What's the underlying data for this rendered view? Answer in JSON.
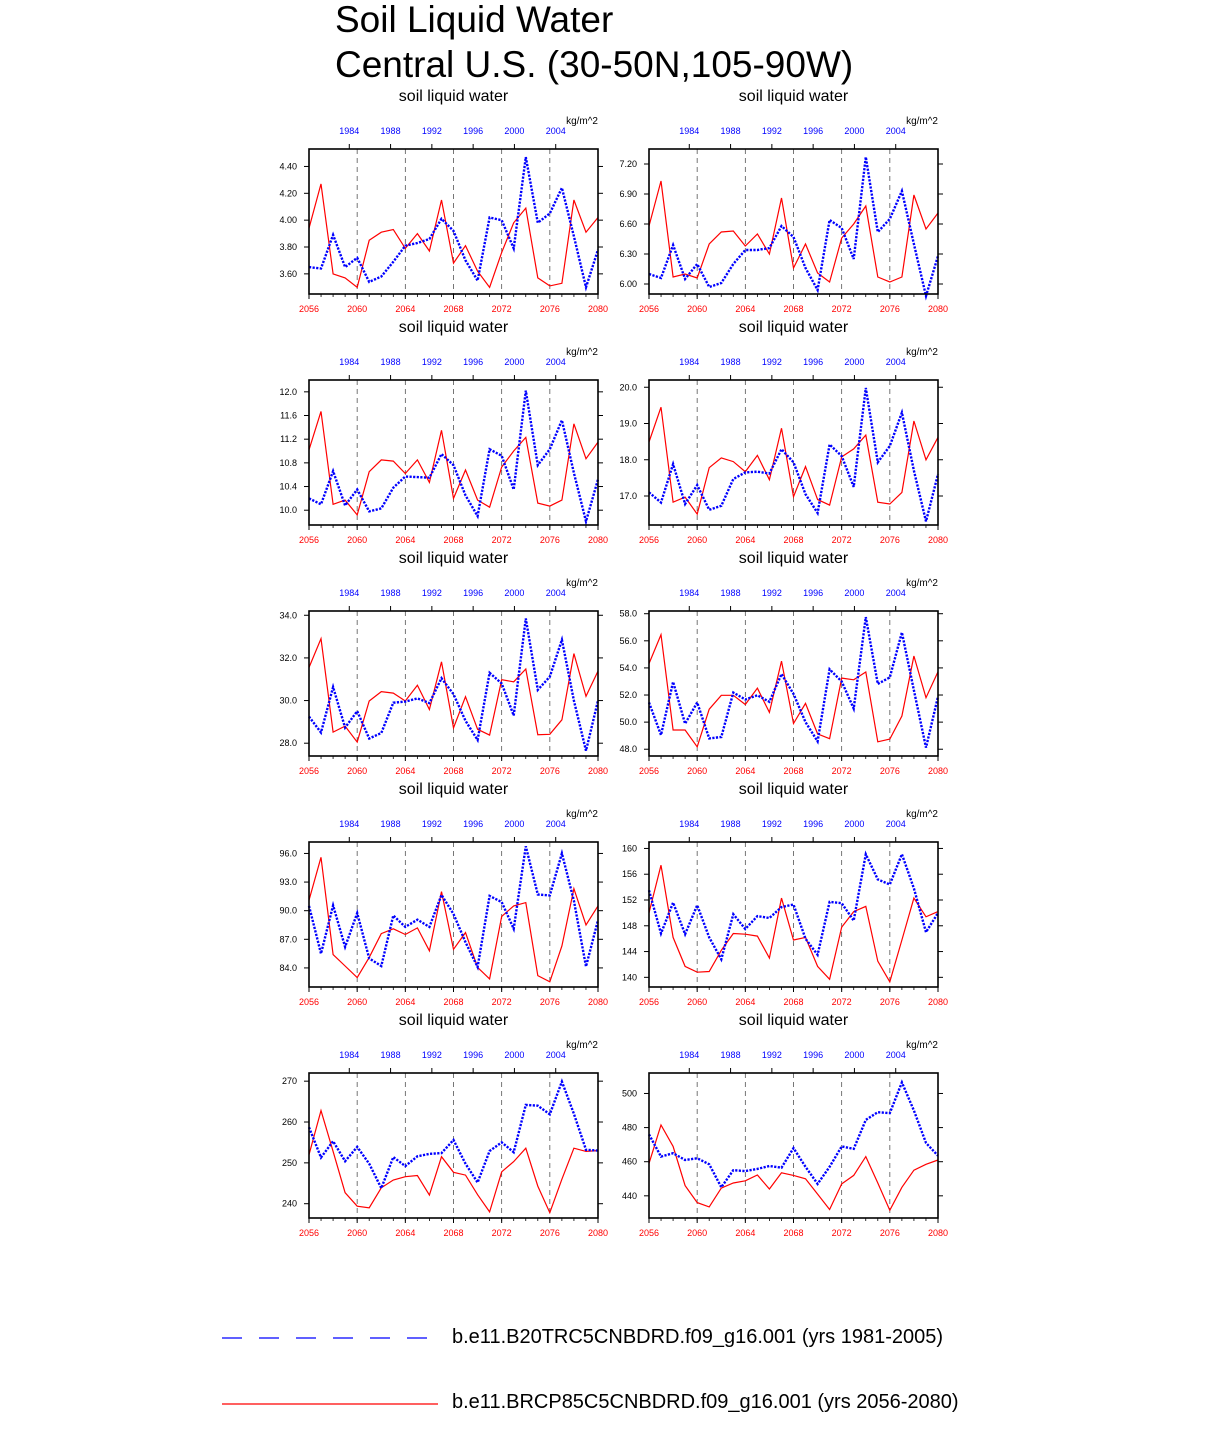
{
  "figure": {
    "title_line1": "Soil Liquid Water",
    "title_line2": "Central U.S. (30-50N,105-90W)"
  },
  "legend": {
    "items": [
      {
        "label": "b.e11.B20TRC5CNBDRD.f09_g16.001 (yrs 1981-2005)",
        "color": "#0000ff",
        "style": "dashed"
      },
      {
        "label": "b.e11.BRCP85C5CNBDRD.f09_g16.001 (yrs 2056-2080)",
        "color": "#ff0000",
        "style": "solid"
      }
    ]
  },
  "chart_data": [
    {
      "type": "line",
      "title": "soil liquid water",
      "units": "kg/m^2",
      "ylim": [
        3.45,
        4.53
      ],
      "yticks": [
        3.6,
        3.8,
        4.0,
        4.2,
        4.4
      ],
      "ytick_labels": [
        "3.60",
        "3.80",
        "4.00",
        "4.20",
        "4.40"
      ],
      "x_bottom_ticks": [
        "2056",
        "2060",
        "2064",
        "2068",
        "2072",
        "2076",
        "2080"
      ],
      "x_top_ticks": [
        "1984",
        "1988",
        "1992",
        "1996",
        "2000",
        "2004"
      ],
      "series": [
        {
          "name": "b.e11.B20TRC5CNBDRD.f09_g16.001 (yrs 1981-2005)",
          "color": "#0000ff",
          "values": [
            3.65,
            3.64,
            3.89,
            3.65,
            3.72,
            3.54,
            3.58,
            3.69,
            3.81,
            3.83,
            3.86,
            4.01,
            3.92,
            3.7,
            3.55,
            4.02,
            4.0,
            3.79,
            4.47,
            3.98,
            4.05,
            4.24,
            3.88,
            3.5,
            3.78
          ]
        },
        {
          "name": "b.e11.BRCP85C5CNBDRD.f09_g16.001 (yrs 2056-2080)",
          "color": "#ff0000",
          "values": [
            3.94,
            4.27,
            3.6,
            3.57,
            3.5,
            3.85,
            3.91,
            3.93,
            3.79,
            3.9,
            3.77,
            4.15,
            3.68,
            3.81,
            3.62,
            3.5,
            3.76,
            3.98,
            4.09,
            3.57,
            3.51,
            3.53,
            4.15,
            3.91,
            4.02
          ]
        }
      ]
    },
    {
      "type": "line",
      "title": "soil liquid water",
      "units": "kg/m^2",
      "ylim": [
        5.9,
        7.35
      ],
      "yticks": [
        6.0,
        6.3,
        6.6,
        6.9,
        7.2
      ],
      "ytick_labels": [
        "6.00",
        "6.30",
        "6.60",
        "6.90",
        "7.20"
      ],
      "x_bottom_ticks": [
        "2056",
        "2060",
        "2064",
        "2068",
        "2072",
        "2076",
        "2080"
      ],
      "x_top_ticks": [
        "1984",
        "1988",
        "1992",
        "1996",
        "2000",
        "2004"
      ],
      "series": [
        {
          "name": "b.e11.B20TRC5CNBDRD.f09_g16.001 (yrs 1981-2005)",
          "color": "#0000ff",
          "values": [
            6.1,
            6.06,
            6.39,
            6.05,
            6.2,
            5.97,
            6.01,
            6.2,
            6.34,
            6.34,
            6.36,
            6.58,
            6.47,
            6.16,
            5.94,
            6.64,
            6.56,
            6.25,
            7.27,
            6.52,
            6.65,
            6.93,
            6.4,
            5.88,
            6.28
          ]
        },
        {
          "name": "b.e11.BRCP85C5CNBDRD.f09_g16.001 (yrs 2056-2080)",
          "color": "#ff0000",
          "values": [
            6.58,
            7.03,
            6.07,
            6.1,
            6.06,
            6.4,
            6.52,
            6.53,
            6.38,
            6.5,
            6.3,
            6.86,
            6.16,
            6.4,
            6.11,
            6.02,
            6.46,
            6.6,
            6.78,
            6.07,
            6.02,
            6.07,
            6.89,
            6.55,
            6.71
          ]
        }
      ]
    },
    {
      "type": "line",
      "title": "soil liquid water",
      "units": "kg/m^2",
      "ylim": [
        9.75,
        12.2
      ],
      "yticks": [
        10.0,
        10.4,
        10.8,
        11.2,
        11.6,
        12.0
      ],
      "ytick_labels": [
        "10.0",
        "10.4",
        "10.8",
        "11.2",
        "11.6",
        "12.0"
      ],
      "x_bottom_ticks": [
        "2056",
        "2060",
        "2064",
        "2068",
        "2072",
        "2076",
        "2080"
      ],
      "x_top_ticks": [
        "1984",
        "1988",
        "1992",
        "1996",
        "2000",
        "2004"
      ],
      "series": [
        {
          "name": "b.e11.B20TRC5CNBDRD.f09_g16.001 (yrs 1981-2005)",
          "color": "#0000ff",
          "values": [
            10.2,
            10.1,
            10.66,
            10.08,
            10.35,
            9.98,
            10.03,
            10.38,
            10.57,
            10.56,
            10.55,
            10.95,
            10.76,
            10.25,
            9.9,
            11.03,
            10.92,
            10.35,
            12.02,
            10.76,
            11.03,
            11.52,
            10.63,
            9.81,
            10.52
          ]
        },
        {
          "name": "b.e11.BRCP85C5CNBDRD.f09_g16.001 (yrs 2056-2080)",
          "color": "#ff0000",
          "values": [
            11.02,
            11.67,
            10.1,
            10.17,
            9.92,
            10.65,
            10.85,
            10.83,
            10.62,
            10.85,
            10.47,
            11.35,
            10.2,
            10.68,
            10.17,
            10.05,
            10.73,
            11.0,
            11.23,
            10.12,
            10.07,
            10.17,
            11.46,
            10.87,
            11.15
          ]
        }
      ]
    },
    {
      "type": "line",
      "title": "soil liquid water",
      "units": "kg/m^2",
      "ylim": [
        16.2,
        20.2
      ],
      "yticks": [
        17.0,
        18.0,
        19.0,
        20.0
      ],
      "ytick_labels": [
        "17.0",
        "18.0",
        "19.0",
        "20.0"
      ],
      "x_bottom_ticks": [
        "2056",
        "2060",
        "2064",
        "2068",
        "2072",
        "2076",
        "2080"
      ],
      "x_top_ticks": [
        "1984",
        "1988",
        "1992",
        "1996",
        "2000",
        "2004"
      ],
      "series": [
        {
          "name": "b.e11.B20TRC5CNBDRD.f09_g16.001 (yrs 1981-2005)",
          "color": "#0000ff",
          "values": [
            17.1,
            16.82,
            17.88,
            16.78,
            17.3,
            16.62,
            16.73,
            17.47,
            17.65,
            17.67,
            17.62,
            18.29,
            17.93,
            17.05,
            16.53,
            18.42,
            18.1,
            17.25,
            19.98,
            17.93,
            18.38,
            19.3,
            17.7,
            16.3,
            17.6
          ]
        },
        {
          "name": "b.e11.BRCP85C5CNBDRD.f09_g16.001 (yrs 2056-2080)",
          "color": "#ff0000",
          "values": [
            18.49,
            19.45,
            16.83,
            16.97,
            16.5,
            17.78,
            18.05,
            17.95,
            17.67,
            18.12,
            17.45,
            18.87,
            16.98,
            17.81,
            16.9,
            16.75,
            18.08,
            18.3,
            18.68,
            16.83,
            16.78,
            17.1,
            19.07,
            18.0,
            18.62
          ]
        }
      ]
    },
    {
      "type": "line",
      "title": "soil liquid water",
      "units": "kg/m^2",
      "ylim": [
        27.4,
        34.2
      ],
      "yticks": [
        28.0,
        30.0,
        32.0,
        34.0
      ],
      "ytick_labels": [
        "28.0",
        "30.0",
        "32.0",
        "34.0"
      ],
      "x_bottom_ticks": [
        "2056",
        "2060",
        "2064",
        "2068",
        "2072",
        "2076",
        "2080"
      ],
      "x_top_ticks": [
        "1984",
        "1988",
        "1992",
        "1996",
        "2000",
        "2004"
      ],
      "series": [
        {
          "name": "b.e11.B20TRC5CNBDRD.f09_g16.001 (yrs 1981-2005)",
          "color": "#0000ff",
          "values": [
            29.25,
            28.5,
            30.63,
            28.73,
            29.5,
            28.22,
            28.48,
            29.9,
            29.95,
            30.1,
            29.88,
            31.05,
            30.3,
            29.05,
            28.15,
            31.3,
            30.8,
            29.3,
            33.85,
            30.5,
            31.12,
            32.85,
            30.0,
            27.65,
            30.0
          ]
        },
        {
          "name": "b.e11.BRCP85C5CNBDRD.f09_g16.001 (yrs 2056-2080)",
          "color": "#ff0000",
          "values": [
            31.55,
            32.9,
            28.52,
            28.8,
            28.05,
            29.98,
            30.42,
            30.35,
            29.98,
            30.72,
            29.58,
            31.82,
            28.72,
            30.18,
            28.65,
            28.38,
            30.98,
            30.88,
            31.48,
            28.4,
            28.42,
            29.1,
            32.2,
            30.2,
            31.38
          ]
        }
      ]
    },
    {
      "type": "line",
      "title": "soil liquid water",
      "units": "kg/m^2",
      "ylim": [
        47.5,
        58.2
      ],
      "yticks": [
        48.0,
        50.0,
        52.0,
        54.0,
        56.0,
        58.0
      ],
      "ytick_labels": [
        "48.0",
        "50.0",
        "52.0",
        "54.0",
        "56.0",
        "58.0"
      ],
      "x_bottom_ticks": [
        "2056",
        "2060",
        "2064",
        "2068",
        "2072",
        "2076",
        "2080"
      ],
      "x_top_ticks": [
        "1984",
        "1988",
        "1992",
        "1996",
        "2000",
        "2004"
      ],
      "series": [
        {
          "name": "b.e11.B20TRC5CNBDRD.f09_g16.001 (yrs 1981-2005)",
          "color": "#0000ff",
          "values": [
            51.45,
            49.05,
            52.97,
            49.88,
            51.45,
            48.8,
            48.9,
            52.18,
            51.67,
            51.98,
            51.5,
            53.55,
            52.08,
            50.0,
            48.58,
            53.9,
            53.0,
            51.0,
            57.75,
            52.82,
            53.3,
            56.62,
            52.35,
            48.12,
            51.88
          ]
        },
        {
          "name": "b.e11.BRCP85C5CNBDRD.f09_g16.001 (yrs 2056-2080)",
          "color": "#ff0000",
          "values": [
            54.32,
            56.45,
            49.42,
            49.42,
            48.18,
            50.95,
            51.98,
            51.98,
            51.3,
            52.5,
            50.72,
            54.5,
            49.9,
            51.38,
            49.13,
            48.78,
            53.25,
            53.12,
            53.7,
            48.55,
            48.75,
            50.45,
            54.88,
            51.8,
            53.72
          ]
        }
      ]
    },
    {
      "type": "line",
      "title": "soil liquid water",
      "units": "kg/m^2",
      "ylim": [
        82.0,
        97.2
      ],
      "yticks": [
        84.0,
        87.0,
        90.0,
        93.0,
        96.0
      ],
      "ytick_labels": [
        "84.0",
        "87.0",
        "90.0",
        "93.0",
        "96.0"
      ],
      "x_bottom_ticks": [
        "2056",
        "2060",
        "2064",
        "2068",
        "2072",
        "2076",
        "2080"
      ],
      "x_top_ticks": [
        "1984",
        "1988",
        "1992",
        "1996",
        "2000",
        "2004"
      ],
      "series": [
        {
          "name": "b.e11.B20TRC5CNBDRD.f09_g16.001 (yrs 1981-2005)",
          "color": "#0000ff",
          "values": [
            90.5,
            85.5,
            90.55,
            86.2,
            89.75,
            85.0,
            84.2,
            89.5,
            88.3,
            89.05,
            88.3,
            91.65,
            89.65,
            86.7,
            84.1,
            91.55,
            90.9,
            88.1,
            96.75,
            91.7,
            91.6,
            96.0,
            91.05,
            84.15,
            89.0
          ]
        },
        {
          "name": "b.e11.BRCP85C5CNBDRD.f09_g16.001 (yrs 2056-2080)",
          "color": "#ff0000",
          "values": [
            91.1,
            95.6,
            85.4,
            84.2,
            83.0,
            85.1,
            87.6,
            88.1,
            87.5,
            88.2,
            85.8,
            92.0,
            85.95,
            87.7,
            84.05,
            82.85,
            89.4,
            90.5,
            90.85,
            83.2,
            82.55,
            86.3,
            92.3,
            88.5,
            90.5
          ]
        }
      ]
    },
    {
      "type": "line",
      "title": "soil liquid water",
      "units": "kg/m^2",
      "ylim": [
        138.5,
        161.0
      ],
      "yticks": [
        140,
        144,
        148,
        152,
        156,
        160
      ],
      "ytick_labels": [
        "140",
        "144",
        "148",
        "152",
        "156",
        "160"
      ],
      "x_bottom_ticks": [
        "2056",
        "2060",
        "2064",
        "2068",
        "2072",
        "2076",
        "2080"
      ],
      "x_top_ticks": [
        "1984",
        "1988",
        "1992",
        "1996",
        "2000",
        "2004"
      ],
      "series": [
        {
          "name": "b.e11.B20TRC5CNBDRD.f09_g16.001 (yrs 1981-2005)",
          "color": "#0000ff",
          "values": [
            153.5,
            146.8,
            151.6,
            146.7,
            151.2,
            146.2,
            142.8,
            149.8,
            147.5,
            149.5,
            149.2,
            150.9,
            151.3,
            146.0,
            143.5,
            151.7,
            151.5,
            148.8,
            159.1,
            155.2,
            154.4,
            159.1,
            153.8,
            147.0,
            150.0
          ]
        },
        {
          "name": "b.e11.BRCP85C5CNBDRD.f09_g16.001 (yrs 2056-2080)",
          "color": "#ff0000",
          "values": [
            150.0,
            157.4,
            146.2,
            141.7,
            140.8,
            140.9,
            144.2,
            146.8,
            146.7,
            146.4,
            143.0,
            152.3,
            145.8,
            146.2,
            141.7,
            139.7,
            147.8,
            150.2,
            151.0,
            142.5,
            139.3,
            145.8,
            152.3,
            149.4,
            150.2
          ]
        }
      ]
    },
    {
      "type": "line",
      "title": "soil liquid water",
      "units": "kg/m^2",
      "ylim": [
        236.5,
        272.0
      ],
      "yticks": [
        240,
        250,
        260,
        270
      ],
      "ytick_labels": [
        "240",
        "250",
        "260",
        "270"
      ],
      "x_bottom_ticks": [
        "2056",
        "2060",
        "2064",
        "2068",
        "2072",
        "2076",
        "2080"
      ],
      "x_top_ticks": [
        "1984",
        "1988",
        "1992",
        "1996",
        "2000",
        "2004"
      ],
      "series": [
        {
          "name": "b.e11.B20TRC5CNBDRD.f09_g16.001 (yrs 1981-2005)",
          "color": "#0000ff",
          "values": [
            258.7,
            251.3,
            255.3,
            250.4,
            253.9,
            249.8,
            243.8,
            251.4,
            249.2,
            251.6,
            252.2,
            252.4,
            255.6,
            249.8,
            245.2,
            252.9,
            255.0,
            252.6,
            264.2,
            264.0,
            261.9,
            269.9,
            262.0,
            253.2,
            253.0
          ]
        },
        {
          "name": "b.e11.BRCP85C5CNBDRD.f09_g16.001 (yrs 2056-2080)",
          "color": "#ff0000",
          "values": [
            252.0,
            262.8,
            252.8,
            242.7,
            239.4,
            239.0,
            243.9,
            245.8,
            246.6,
            246.9,
            242.1,
            251.5,
            247.7,
            247.0,
            242.2,
            238.0,
            247.8,
            250.3,
            253.6,
            244.3,
            237.8,
            246.0,
            253.6,
            252.8,
            253.0
          ]
        }
      ]
    },
    {
      "type": "line",
      "title": "soil liquid water",
      "units": "kg/m^2",
      "ylim": [
        427.0,
        512.0
      ],
      "yticks": [
        440,
        460,
        480,
        500
      ],
      "ytick_labels": [
        "440",
        "460",
        "480",
        "500"
      ],
      "x_bottom_ticks": [
        "2056",
        "2060",
        "2064",
        "2068",
        "2072",
        "2076",
        "2080"
      ],
      "x_top_ticks": [
        "1984",
        "1988",
        "1992",
        "1996",
        "2000",
        "2004"
      ],
      "series": [
        {
          "name": "b.e11.B20TRC5CNBDRD.f09_g16.001 (yrs 1981-2005)",
          "color": "#0000ff",
          "values": [
            476.0,
            463.0,
            465.0,
            461.0,
            462.0,
            458.5,
            445.0,
            455.0,
            454.5,
            455.8,
            457.5,
            456.5,
            468.0,
            457.0,
            447.0,
            457.0,
            469.0,
            467.5,
            484.5,
            489.0,
            488.5,
            506.5,
            490.0,
            471.0,
            463.5
          ]
        },
        {
          "name": "b.e11.BRCP85C5CNBDRD.f09_g16.001 (yrs 2056-2080)",
          "color": "#ff0000",
          "values": [
            459.0,
            481.5,
            469.0,
            446.0,
            436.0,
            433.5,
            444.5,
            447.5,
            448.8,
            452.2,
            444.0,
            453.5,
            452.0,
            450.0,
            441.0,
            432.0,
            447.0,
            452.0,
            463.0,
            447.5,
            431.5,
            445.0,
            455.0,
            458.5,
            461.0
          ]
        }
      ]
    }
  ]
}
